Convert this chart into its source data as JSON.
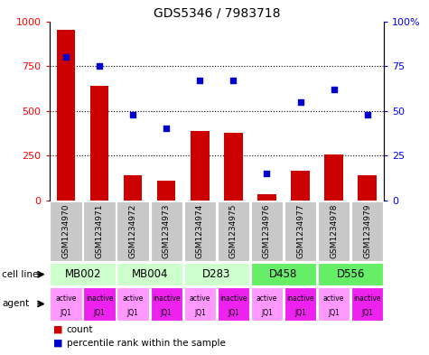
{
  "title": "GDS5346 / 7983718",
  "samples": [
    "GSM1234970",
    "GSM1234971",
    "GSM1234972",
    "GSM1234973",
    "GSM1234974",
    "GSM1234975",
    "GSM1234976",
    "GSM1234977",
    "GSM1234978",
    "GSM1234979"
  ],
  "counts": [
    950,
    640,
    140,
    110,
    385,
    375,
    35,
    165,
    255,
    140
  ],
  "percentiles": [
    80,
    75,
    48,
    40,
    67,
    67,
    15,
    55,
    62,
    48
  ],
  "cell_lines": [
    {
      "name": "MB002",
      "cols": [
        0,
        1
      ],
      "color": "#ccffcc"
    },
    {
      "name": "MB004",
      "cols": [
        2,
        3
      ],
      "color": "#ccffcc"
    },
    {
      "name": "D283",
      "cols": [
        4,
        5
      ],
      "color": "#ccffcc"
    },
    {
      "name": "D458",
      "cols": [
        6,
        7
      ],
      "color": "#66ee66"
    },
    {
      "name": "D556",
      "cols": [
        8,
        9
      ],
      "color": "#66ee66"
    }
  ],
  "agent_labels": [
    "active",
    "inactive",
    "active",
    "inactive",
    "active",
    "inactive",
    "active",
    "inactive",
    "active",
    "inactive"
  ],
  "agent_sub": "JQ1",
  "agent_active_color": "#ff99ff",
  "agent_inactive_color": "#ee22ee",
  "bar_color": "#cc0000",
  "dot_color": "#0000cc",
  "ylim_left": [
    0,
    1000
  ],
  "ylim_right": [
    0,
    100
  ],
  "yticks_left": [
    0,
    250,
    500,
    750,
    1000
  ],
  "yticks_right": [
    0,
    25,
    50,
    75,
    100
  ],
  "sample_bg_color": "#c8c8c8",
  "bar_width": 0.55,
  "background_color": "#ffffff"
}
